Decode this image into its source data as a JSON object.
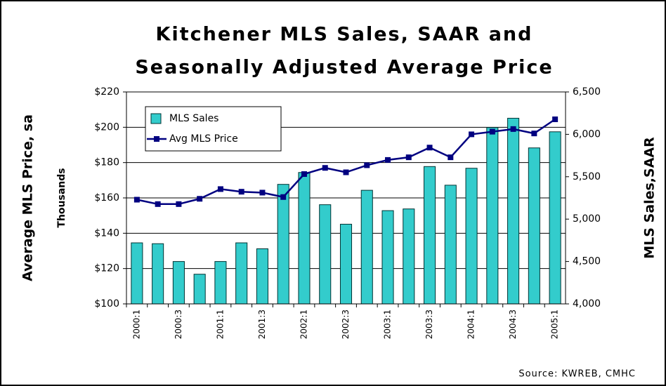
{
  "chart_data": {
    "type": "combo",
    "title": [
      "Kitchener MLS Sales, SAAR and",
      "Seasonally Adjusted Average Price"
    ],
    "ylabel": "Average MLS Price, sa",
    "ylabel_sub": "Thousands",
    "y2label": "MLS Sales,SAAR",
    "source": "Source: KWREB, CMHC",
    "categories": [
      "2000:1",
      null,
      "2000:3",
      null,
      "2001:1",
      null,
      "2001:3",
      null,
      "2002:1",
      null,
      "2002:3",
      null,
      "2003:1",
      null,
      "2003:3",
      null,
      "2004:1",
      null,
      "2004:3",
      null,
      "2005:1"
    ],
    "series": [
      {
        "name": "MLS Sales",
        "type": "bar",
        "axis": "y2",
        "color": "#33cccc",
        "values": [
          4720,
          4710,
          4500,
          4350,
          4500,
          4720,
          4650,
          5410,
          5550,
          5170,
          4940,
          5340,
          5100,
          5120,
          5620,
          5400,
          5600,
          6080,
          6190,
          5840,
          6030
        ]
      },
      {
        "name": "Avg MLS Price",
        "type": "line",
        "axis": "y",
        "color": "#000080",
        "values": [
          159,
          156.5,
          156.5,
          159.5,
          165,
          163.5,
          163,
          160.5,
          173.5,
          177,
          174.5,
          178.5,
          181.5,
          183,
          188.5,
          183,
          196,
          197.5,
          199,
          196.5,
          204.5
        ]
      }
    ],
    "ylim": [
      100,
      220
    ],
    "yticks": [
      {
        "value": 100,
        "label": "$100"
      },
      {
        "value": 120,
        "label": "$120"
      },
      {
        "value": 140,
        "label": "$140"
      },
      {
        "value": 160,
        "label": "$160"
      },
      {
        "value": 180,
        "label": "$180"
      },
      {
        "value": 200,
        "label": "$200"
      },
      {
        "value": 220,
        "label": "$220"
      }
    ],
    "y2lim": [
      4000,
      6500
    ],
    "y2ticks": [
      {
        "value": 4000,
        "label": "4,000"
      },
      {
        "value": 4500,
        "label": "4,500"
      },
      {
        "value": 5000,
        "label": "5,000"
      },
      {
        "value": 5500,
        "label": "5,500"
      },
      {
        "value": 6000,
        "label": "6,000"
      },
      {
        "value": 6500,
        "label": "6,500"
      }
    ],
    "grid": true,
    "legend": "top-left"
  }
}
